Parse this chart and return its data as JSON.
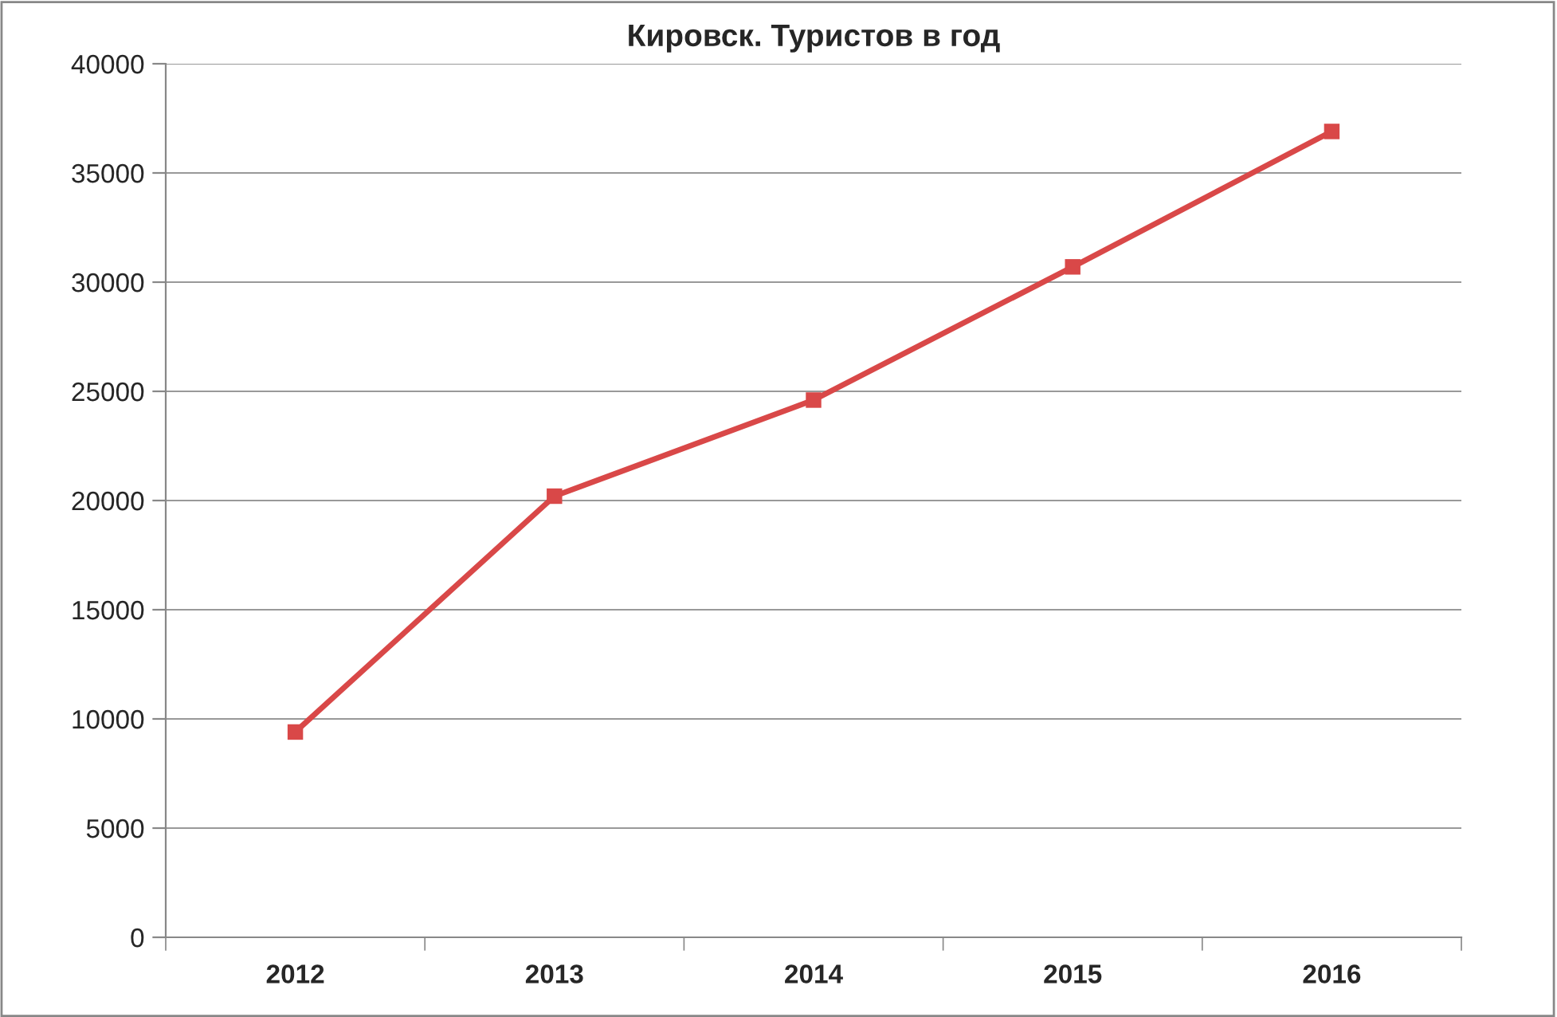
{
  "chart_data": {
    "type": "line",
    "title": "Кировск. Туристов в год",
    "categories": [
      "2012",
      "2013",
      "2014",
      "2015",
      "2016"
    ],
    "series": [
      {
        "color": "#d94848",
        "values": [
          9400,
          20200,
          24600,
          30700,
          36900
        ]
      }
    ],
    "ylim": [
      0,
      40000
    ],
    "yticks": [
      0,
      5000,
      10000,
      15000,
      20000,
      25000,
      30000,
      35000,
      40000
    ],
    "grid": "y",
    "marker": "square",
    "line_style": "solid",
    "legend": false
  }
}
